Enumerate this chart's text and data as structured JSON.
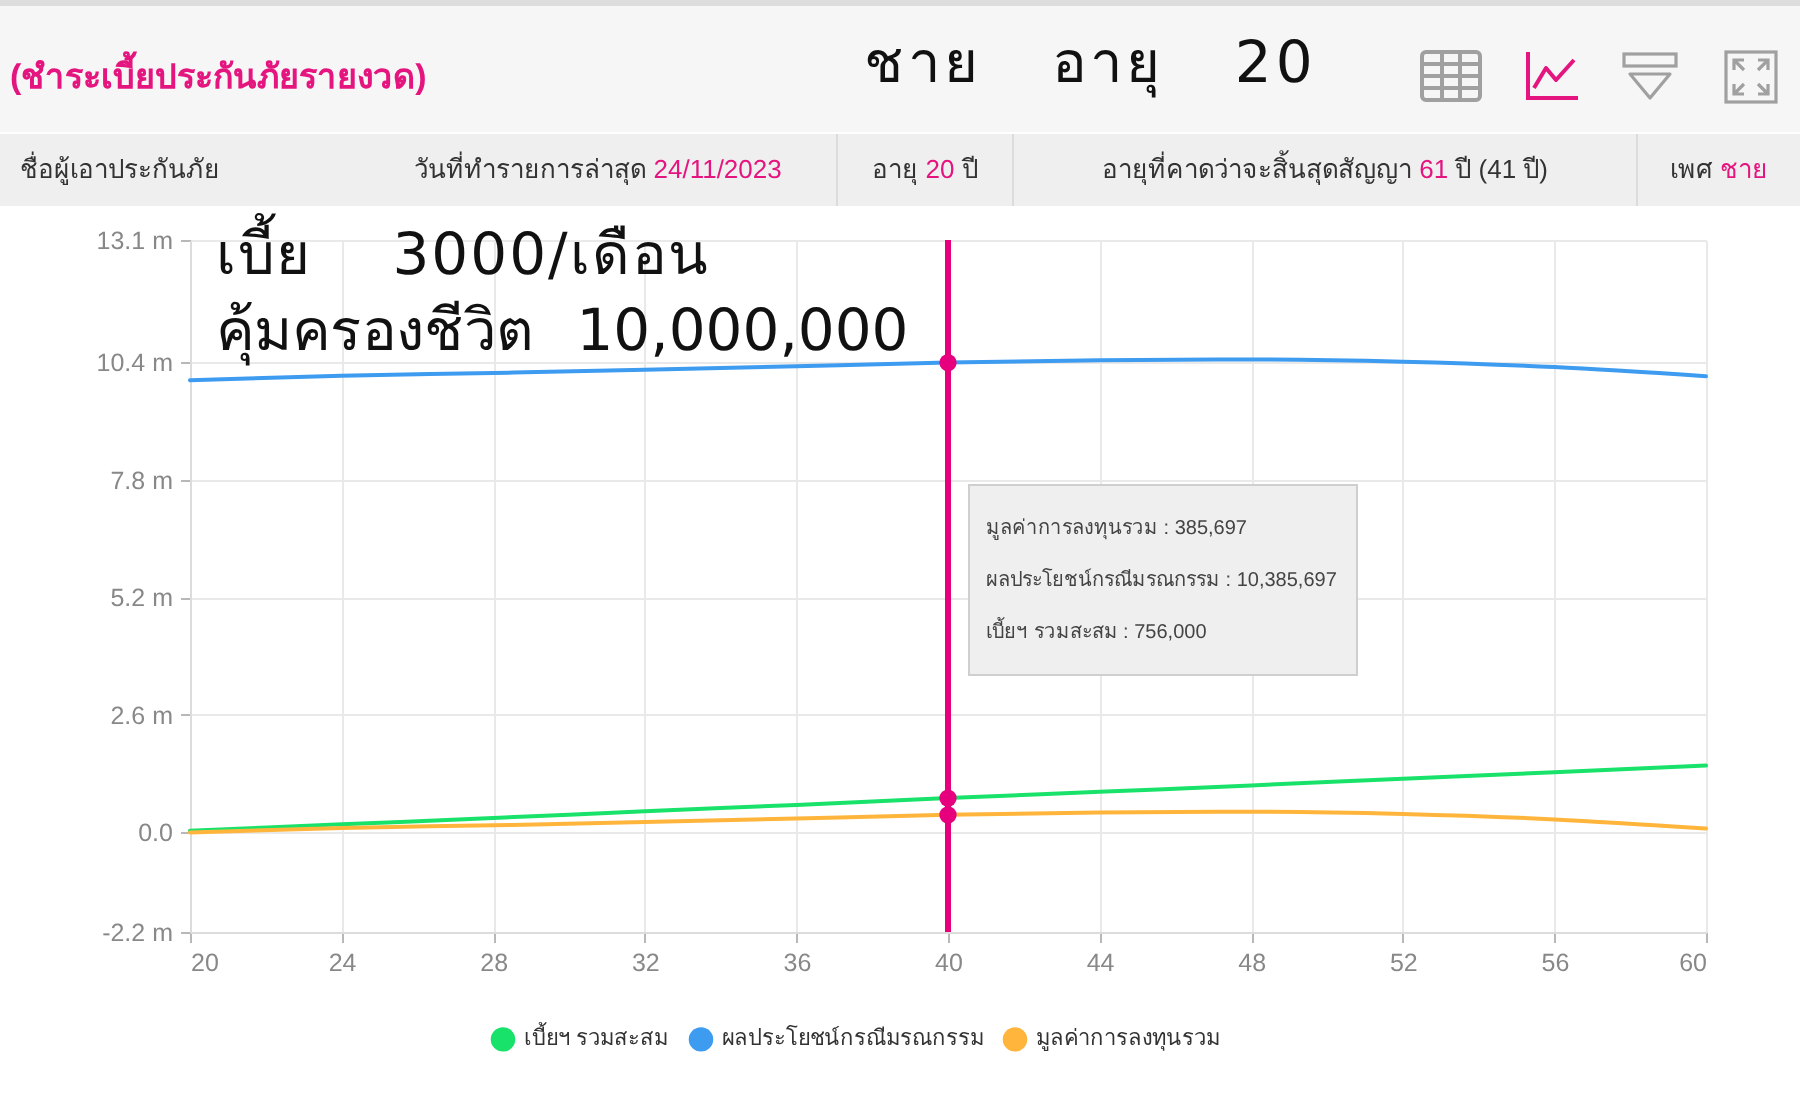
{
  "chart_data": {
    "type": "line",
    "title": "(ชำระเบี้ยประกันภัยรายงวด)",
    "annotations": [
      "ชาย อายุ 20",
      "เบี้ย 3000/เดือน",
      "คุ้มครองชีวิต 10,000,000",
      "ชื่อผู้เอาประกันภัย",
      "วันที่ทำรายการล่าสุด 24/11/2023",
      "อายุ 20 ปี",
      "อายุที่คาดว่าจะสิ้นสุดสัญญา 61 ปี (41 ปี)",
      "เพศ ชาย",
      "มูลค่าการลงทุนรวม : 385,697",
      "ผลประโยชน์กรณีมรณกรรม : 10,385,697",
      "เบี้ยฯ รวมสะสม : 756,000"
    ],
    "x": [
      20,
      24,
      28,
      32,
      36,
      40,
      44,
      48,
      52,
      56,
      60
    ],
    "series": [
      {
        "name": "เบี้ยฯ รวมสะสม",
        "color": "#19e26a",
        "values": [
          0.04,
          0.18,
          0.32,
          0.47,
          0.61,
          0.76,
          0.9,
          1.04,
          1.19,
          1.33,
          1.48
        ]
      },
      {
        "name": "ผลประโยชน์กรณีมรณกรรม",
        "color": "#3d9bf0",
        "values": [
          10.0,
          10.1,
          10.16,
          10.23,
          10.31,
          10.39,
          10.44,
          10.46,
          10.41,
          10.29,
          10.09
        ]
      },
      {
        "name": "มูลค่าการลงทุนรวม",
        "color": "#ffb53c",
        "values": [
          0.0,
          0.1,
          0.16,
          0.23,
          0.31,
          0.39,
          0.44,
          0.46,
          0.41,
          0.29,
          0.09
        ]
      }
    ],
    "xlim": [
      20,
      60
    ],
    "xticks": [
      20,
      24,
      28,
      32,
      36,
      40,
      44,
      48,
      52,
      56,
      60
    ],
    "ylim": [
      -2.2,
      13.1
    ],
    "yticks": [
      {
        "value": -2.2,
        "label": "-2.2 m"
      },
      {
        "value": 0,
        "label": "0.0"
      },
      {
        "value": 2.6,
        "label": "2.6 m"
      },
      {
        "value": 5.2,
        "label": "5.2 m"
      },
      {
        "value": 7.8,
        "label": "7.8 m"
      },
      {
        "value": 10.4,
        "label": "10.4 m"
      },
      {
        "value": 13.1,
        "label": "13.1 m"
      }
    ],
    "ref_lines": [
      {
        "axis": "x",
        "value": 40,
        "color": "#e6007e"
      }
    ],
    "grid": true,
    "legend": "bottom"
  }
}
